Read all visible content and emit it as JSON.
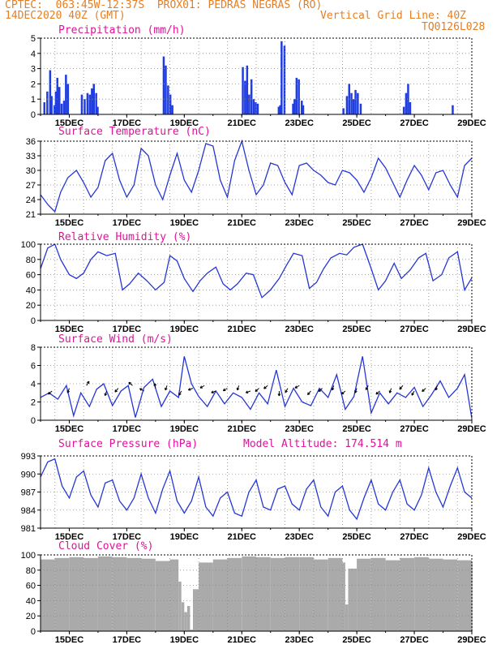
{
  "header": {
    "line1": "CPTEC:  063:45W-12:37S  PROX01: PEDRAS NEGRAS (RO)",
    "line2": "14DEC2020 40Z (GMT)",
    "grid_note": "Vertical Grid Line: 40Z",
    "code": "TQ0126L028"
  },
  "colors": {
    "header": "#e67e22",
    "title": "#e0129a",
    "series": "#2536d6",
    "bar": "#1f3de0",
    "cloud": "#aaaaaa"
  },
  "time_axis": {
    "days": [
      "15DEC",
      "17DEC",
      "19DEC",
      "21DEC",
      "23DEC",
      "25DEC",
      "27DEC",
      "29DEC"
    ],
    "note": "x in days since 14DEC2020 00Z"
  },
  "chart_data": [
    {
      "type": "bar",
      "title": "Precipitation (mm/h)",
      "ylim": [
        0,
        5
      ],
      "yticks": [
        0,
        1,
        2,
        3,
        4,
        5
      ],
      "x": [
        0.1,
        0.2,
        0.3,
        0.35,
        0.45,
        0.5,
        0.55,
        0.62,
        0.7,
        0.78,
        0.85,
        0.92,
        1.4,
        1.5,
        1.6,
        1.68,
        1.75,
        1.82,
        1.9,
        1.95,
        4.25,
        4.32,
        4.4,
        4.48,
        4.55,
        7.0,
        7.08,
        7.15,
        7.22,
        7.3,
        7.38,
        7.45,
        7.52,
        8.25,
        8.3,
        8.35,
        8.45,
        8.75,
        8.8,
        8.87,
        8.95,
        9.05,
        9.1,
        10.5,
        10.62,
        10.7,
        10.78,
        10.85,
        10.92,
        11.0,
        11.1,
        12.6,
        12.68,
        12.75,
        12.82,
        14.3
      ],
      "values": [
        0.8,
        1.5,
        2.9,
        1.2,
        0.6,
        1.5,
        2.4,
        1.8,
        0.7,
        0.9,
        2.6,
        2.0,
        1.3,
        1.0,
        1.4,
        1.3,
        1.7,
        2.0,
        1.4,
        0.5,
        3.8,
        3.2,
        1.9,
        1.3,
        0.6,
        3.1,
        2.2,
        3.2,
        1.3,
        2.3,
        1.0,
        0.8,
        0.7,
        0.5,
        0.6,
        4.8,
        4.5,
        0.7,
        1.0,
        2.4,
        2.3,
        0.9,
        0.6,
        0.4,
        1.2,
        2.0,
        1.4,
        1.0,
        1.6,
        1.4,
        0.7,
        0.5,
        1.4,
        2.0,
        0.8,
        0.6
      ]
    },
    {
      "type": "line",
      "title": "Surface Temperature (nC)",
      "ylim": [
        21,
        36
      ],
      "yticks": [
        21,
        24,
        27,
        30,
        33,
        36
      ],
      "x": [
        0,
        0.25,
        0.5,
        0.7,
        0.95,
        1.25,
        1.5,
        1.75,
        2.0,
        2.25,
        2.5,
        2.75,
        3.0,
        3.25,
        3.5,
        3.75,
        4.0,
        4.25,
        4.5,
        4.75,
        5.0,
        5.25,
        5.5,
        5.75,
        6.0,
        6.25,
        6.5,
        6.75,
        7.0,
        7.25,
        7.5,
        7.75,
        8.0,
        8.25,
        8.5,
        8.75,
        9.0,
        9.25,
        9.5,
        9.75,
        10.0,
        10.25,
        10.5,
        10.75,
        11.0,
        11.25,
        11.5,
        11.75,
        12.0,
        12.25,
        12.5,
        12.75,
        13.0,
        13.25,
        13.5,
        13.75,
        14.0,
        14.25,
        14.5,
        14.75,
        15.0
      ],
      "values": [
        25,
        23,
        21.5,
        25.5,
        28.5,
        30,
        27.5,
        24.5,
        26.5,
        32,
        33.5,
        28,
        24.5,
        27,
        34.5,
        33,
        27,
        24,
        29,
        33.5,
        28,
        25.5,
        30,
        35.5,
        35,
        28,
        24.5,
        32,
        36,
        30,
        25,
        27,
        31.5,
        31,
        27.5,
        25,
        31,
        31.5,
        30,
        29,
        27.5,
        27,
        30,
        29.5,
        28,
        25.5,
        28.5,
        32.5,
        30.5,
        27.5,
        24.5,
        28,
        31,
        29,
        26,
        29.5,
        30,
        27,
        24.5,
        31,
        32.5
      ]
    },
    {
      "type": "line",
      "title": "Relative Humidity (%)",
      "ylim": [
        0,
        100
      ],
      "yticks": [
        0,
        20,
        40,
        60,
        80,
        100
      ],
      "x": [
        0,
        0.25,
        0.5,
        0.7,
        1.0,
        1.25,
        1.5,
        1.75,
        2.0,
        2.3,
        2.6,
        2.85,
        3.1,
        3.4,
        3.7,
        4.0,
        4.3,
        4.5,
        4.75,
        5.0,
        5.3,
        5.55,
        5.8,
        6.1,
        6.35,
        6.6,
        6.85,
        7.15,
        7.4,
        7.7,
        8.0,
        8.3,
        8.55,
        8.8,
        9.1,
        9.35,
        9.6,
        9.85,
        10.1,
        10.4,
        10.65,
        10.9,
        11.2,
        11.5,
        11.75,
        12.0,
        12.3,
        12.55,
        12.85,
        13.15,
        13.4,
        13.65,
        13.95,
        14.2,
        14.5,
        14.75,
        15.0
      ],
      "values": [
        68,
        95,
        100,
        80,
        60,
        55,
        62,
        80,
        90,
        85,
        88,
        40,
        48,
        62,
        52,
        40,
        50,
        85,
        78,
        55,
        38,
        52,
        62,
        70,
        48,
        40,
        48,
        62,
        60,
        30,
        40,
        55,
        72,
        88,
        85,
        42,
        50,
        68,
        82,
        88,
        86,
        96,
        100,
        68,
        40,
        52,
        75,
        55,
        66,
        82,
        88,
        52,
        60,
        82,
        90,
        40,
        56
      ]
    },
    {
      "type": "line",
      "title": "Surface Wind (m/s)",
      "ylim": [
        0,
        8
      ],
      "yticks": [
        0,
        2,
        4,
        6,
        8
      ],
      "x": [
        0,
        0.3,
        0.6,
        0.9,
        1.15,
        1.4,
        1.7,
        1.95,
        2.2,
        2.5,
        2.8,
        3.05,
        3.3,
        3.6,
        3.9,
        4.2,
        4.5,
        4.8,
        5.0,
        5.25,
        5.5,
        5.8,
        6.1,
        6.4,
        6.7,
        7.0,
        7.3,
        7.6,
        7.9,
        8.2,
        8.5,
        8.8,
        9.1,
        9.4,
        9.7,
        10.0,
        10.3,
        10.6,
        10.9,
        11.2,
        11.5,
        11.8,
        12.1,
        12.4,
        12.7,
        13.0,
        13.3,
        13.6,
        13.9,
        14.2,
        14.5,
        14.75,
        15.0
      ],
      "values": [
        2.5,
        3.0,
        2.3,
        3.8,
        0.5,
        3.0,
        1.5,
        3.4,
        4.0,
        1.6,
        3.2,
        3.8,
        0.3,
        3.6,
        4.5,
        1.5,
        3.2,
        2.5,
        7.0,
        4.0,
        2.6,
        1.5,
        3.2,
        1.8,
        3.0,
        2.5,
        1.2,
        3.0,
        1.8,
        5.5,
        1.5,
        3.5,
        2.0,
        1.6,
        3.5,
        2.5,
        5.0,
        1.2,
        2.6,
        7.0,
        0.8,
        3.0,
        1.8,
        3.0,
        2.5,
        3.6,
        1.5,
        2.8,
        4.3,
        2.5,
        3.5,
        5.0,
        0.2
      ]
    },
    {
      "type": "line",
      "title": "Surface Pressure (hPa)",
      "annotation": "Model Altitude: 174.514 m",
      "ylim": [
        981,
        993
      ],
      "yticks": [
        981,
        984,
        987,
        990,
        993
      ],
      "x": [
        0,
        0.25,
        0.5,
        0.75,
        1.0,
        1.25,
        1.5,
        1.75,
        2.0,
        2.25,
        2.5,
        2.75,
        3.0,
        3.25,
        3.5,
        3.75,
        4.0,
        4.25,
        4.5,
        4.75,
        5.0,
        5.25,
        5.5,
        5.75,
        6.0,
        6.25,
        6.5,
        6.75,
        7.0,
        7.25,
        7.5,
        7.75,
        8.0,
        8.25,
        8.5,
        8.75,
        9.0,
        9.25,
        9.5,
        9.75,
        10.0,
        10.25,
        10.5,
        10.75,
        11.0,
        11.25,
        11.5,
        11.75,
        12.0,
        12.25,
        12.5,
        12.75,
        13.0,
        13.25,
        13.5,
        13.75,
        14.0,
        14.25,
        14.5,
        14.75,
        15.0
      ],
      "values": [
        989.5,
        992,
        992.5,
        988,
        986,
        989.5,
        990.5,
        986.5,
        984.5,
        988.5,
        989,
        985.5,
        984,
        986,
        990,
        986,
        983.5,
        987.5,
        990.5,
        985.5,
        983.5,
        985.5,
        989.5,
        984.5,
        983,
        986,
        987,
        983.5,
        983,
        987,
        989,
        984.5,
        984,
        987.5,
        988,
        985,
        984,
        987.5,
        989,
        984.5,
        983,
        987,
        988,
        984,
        982.5,
        986,
        989,
        985,
        984,
        987,
        989,
        985,
        984,
        986.5,
        991,
        987,
        984.5,
        988,
        991,
        987,
        986
      ]
    },
    {
      "type": "bar",
      "title": "Cloud Cover (%)",
      "ylim": [
        0,
        100
      ],
      "yticks": [
        0,
        20,
        40,
        60,
        80,
        100
      ],
      "x": [
        0.0,
        0.5,
        1.0,
        1.5,
        2.0,
        2.5,
        3.0,
        3.5,
        4.0,
        4.5,
        4.8,
        4.9,
        5.0,
        5.1,
        5.2,
        5.3,
        5.5,
        6.0,
        6.5,
        7.0,
        7.5,
        8.0,
        8.5,
        9.0,
        9.5,
        10.0,
        10.5,
        10.6,
        10.7,
        11.0,
        11.5,
        12.0,
        12.5,
        13.0,
        13.5,
        14.0,
        14.5,
        15.0
      ],
      "values": [
        94,
        96,
        97,
        96,
        98,
        97,
        96,
        95,
        92,
        94,
        65,
        38,
        25,
        33,
        2,
        55,
        90,
        94,
        96,
        98,
        97,
        96,
        97,
        97,
        94,
        96,
        90,
        35,
        82,
        95,
        96,
        93,
        96,
        97,
        95,
        94,
        93,
        90
      ]
    }
  ]
}
